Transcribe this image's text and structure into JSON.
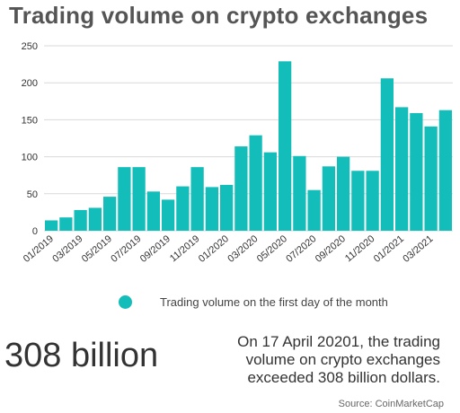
{
  "title": "Trading volume on crypto exchanges",
  "legend_label": "Trading volume on the first day of the month",
  "highlight_value": "308 billion",
  "note": "On 17 April 20201, the trading volume on crypto exchanges exceeded 308 billion dollars.",
  "source": "Source: CoinMarketCap",
  "colors": {
    "bar": "#13bdb9",
    "grid": "#d9d9d9"
  },
  "chart_data": {
    "type": "bar",
    "title": "Trading volume on crypto exchanges",
    "xlabel": "",
    "ylabel": "",
    "ylim": [
      0,
      250
    ],
    "yticks": [
      0,
      50,
      100,
      150,
      200,
      250
    ],
    "grid": true,
    "legend_placement": "bottom",
    "categories": [
      "01/2019",
      "02/2019",
      "03/2019",
      "04/2019",
      "05/2019",
      "06/2019",
      "07/2019",
      "08/2019",
      "09/2019",
      "10/2019",
      "11/2019",
      "12/2019",
      "01/2020",
      "02/2020",
      "03/2020",
      "04/2020",
      "05/2020",
      "06/2020",
      "07/2020",
      "08/2020",
      "09/2020",
      "10/2020",
      "11/2020",
      "12/2020",
      "01/2021",
      "02/2021",
      "03/2021",
      "04/2021"
    ],
    "x_tick_labels": [
      "01/2019",
      "",
      "03/2019",
      "",
      "05/2019",
      "",
      "07/2019",
      "",
      "09/2019",
      "",
      "11/2019",
      "",
      "01/2020",
      "",
      "03/2020",
      "",
      "05/2020",
      "",
      "07/2020",
      "",
      "09/2020",
      "",
      "11/2020",
      "",
      "01/2021",
      "",
      "03/2021",
      ""
    ],
    "series": [
      {
        "name": "Trading volume on the first day of the month",
        "values": [
          14,
          18,
          28,
          31,
          46,
          86,
          86,
          53,
          42,
          60,
          86,
          59,
          62,
          114,
          129,
          106,
          229,
          101,
          55,
          87,
          100,
          81,
          81,
          206,
          167,
          159,
          141,
          163
        ]
      }
    ]
  }
}
